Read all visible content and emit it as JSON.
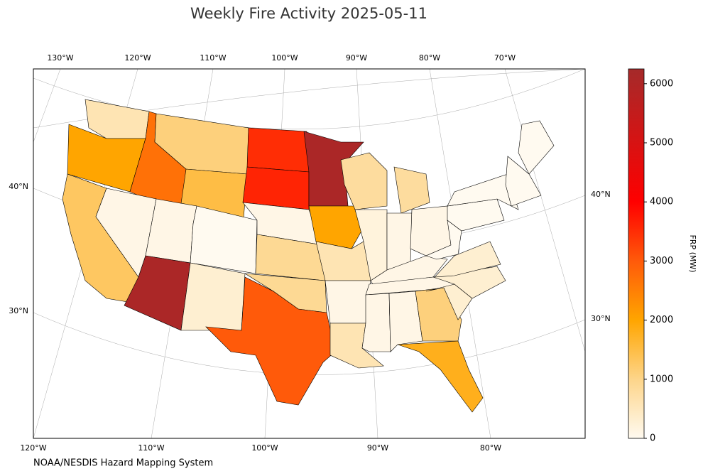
{
  "chart_data": {
    "type": "choropleth",
    "title": "Weekly Fire Activity 2025-05-11",
    "source": "NOAA/NESDIS Hazard Mapping System",
    "top_labels": [
      "130°W",
      "120°W",
      "110°W",
      "100°W",
      "90°W",
      "80°W",
      "70°W"
    ],
    "bottom_labels": [
      "120°W",
      "110°W",
      "100°W",
      "90°W",
      "80°W"
    ],
    "left_labels": [
      "40°N",
      "30°N"
    ],
    "right_labels": [
      "40°N",
      "30°N"
    ],
    "values": [
      600,
      2000,
      1300,
      2700,
      100,
      1100,
      1500,
      100,
      6100,
      0,
      300,
      3500,
      3600,
      100,
      900,
      900,
      3000,
      6100,
      2000,
      600,
      100,
      600,
      800,
      800,
      200,
      100,
      100,
      100,
      100,
      100,
      100,
      1100,
      1800,
      300,
      300,
      300,
      0,
      0,
      0,
      0,
      0
    ],
    "colorbar": {
      "label": "FRP (MW)",
      "lim": [
        0,
        6250
      ],
      "ticks": [
        0,
        1000,
        2000,
        3000,
        4000,
        5000,
        6000
      ],
      "colorscale": [
        [
          0,
          "#fffaf0"
        ],
        [
          1000,
          "#fdd58a"
        ],
        [
          2000,
          "#ffa500"
        ],
        [
          3000,
          "#ff5a0a"
        ],
        [
          4000,
          "#ff0000"
        ],
        [
          6250,
          "#a52a2a"
        ]
      ]
    }
  }
}
